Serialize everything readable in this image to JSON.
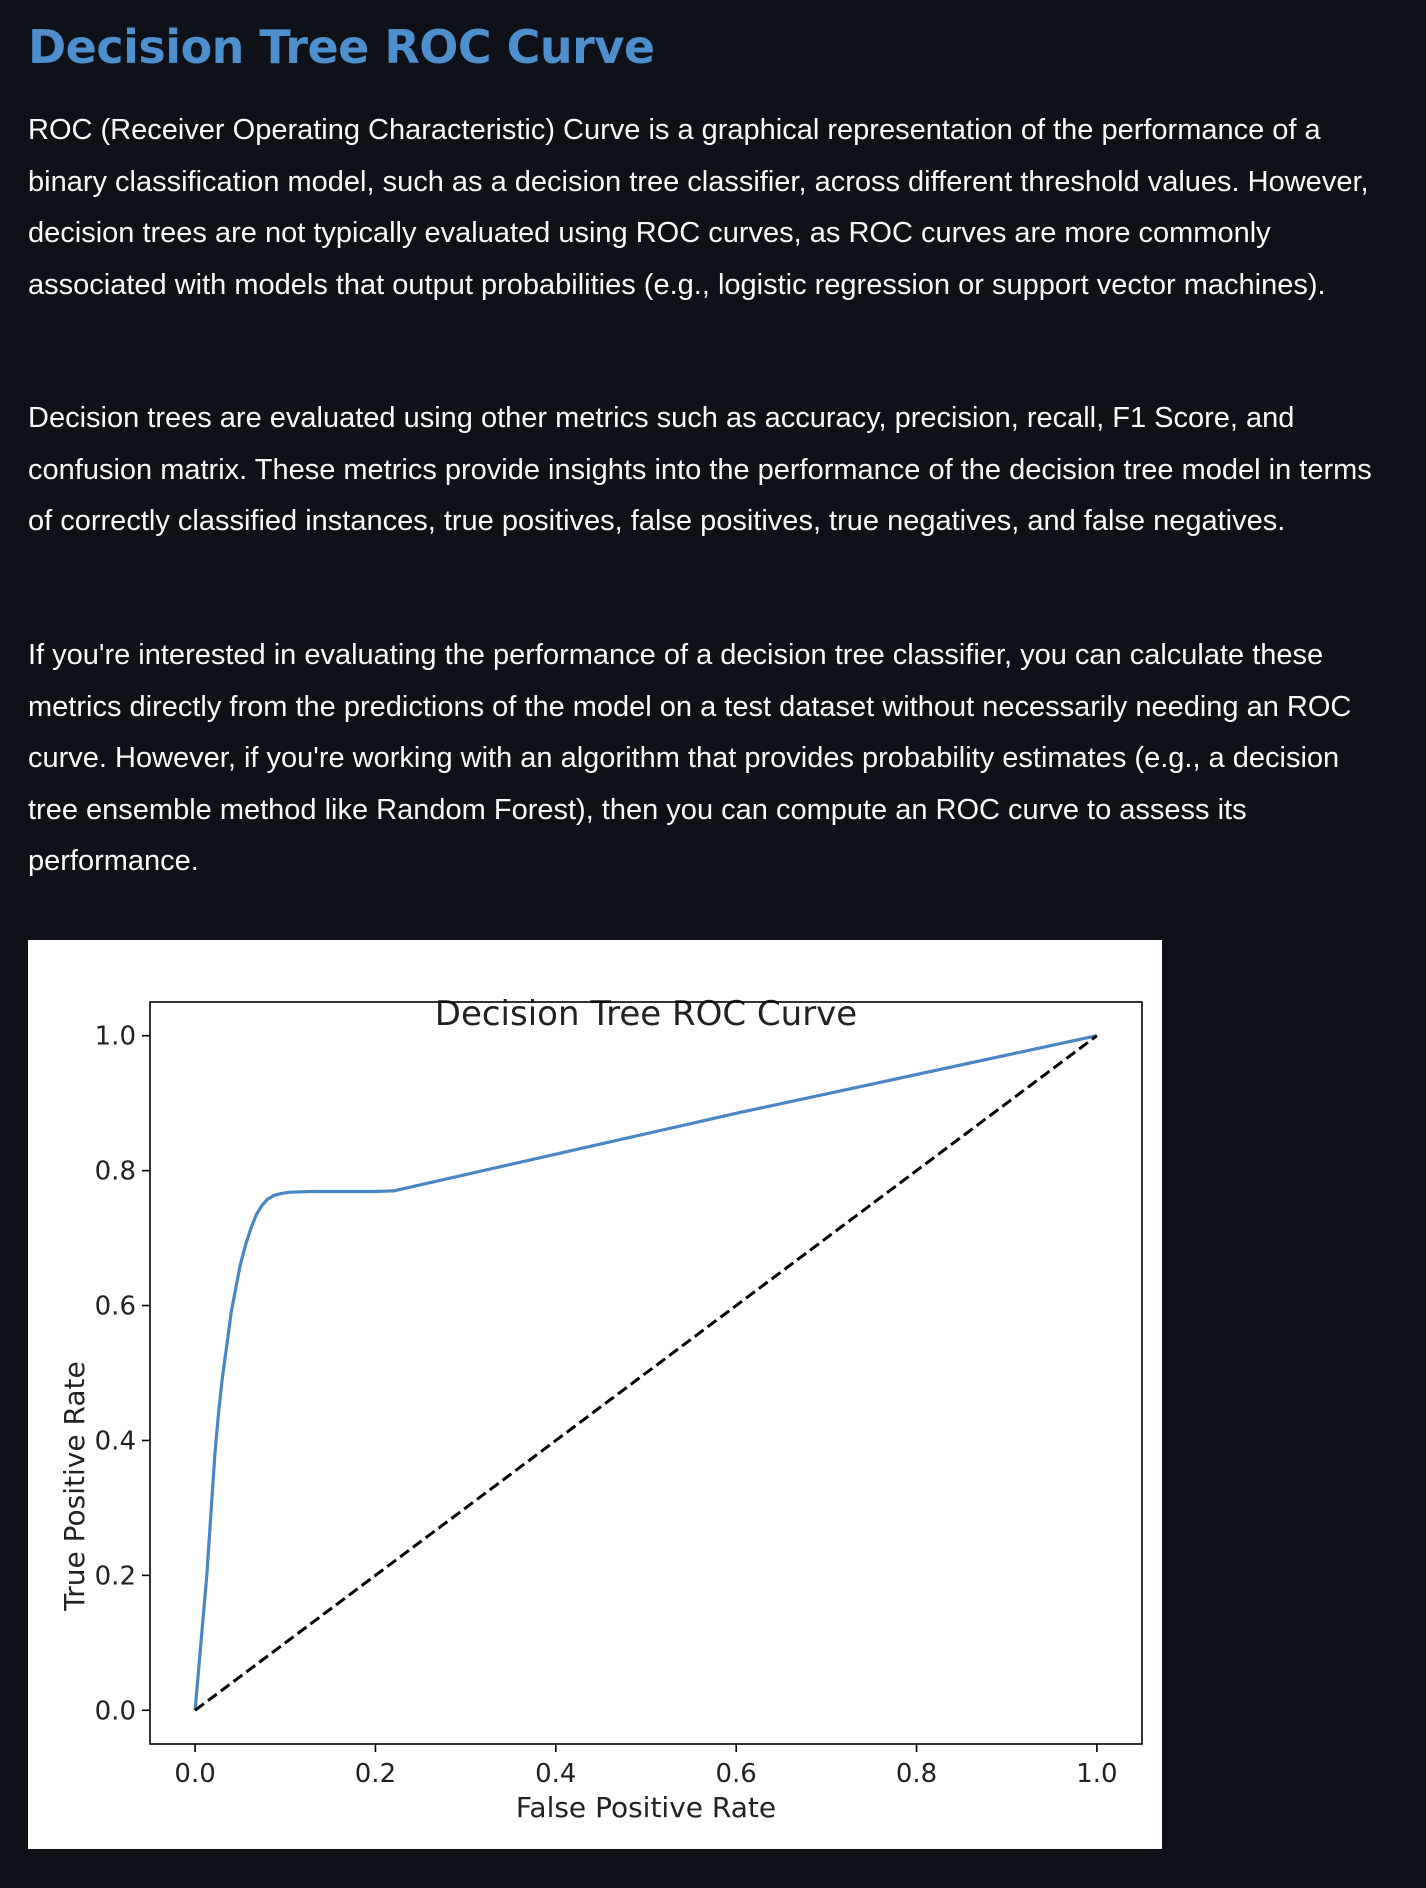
{
  "page": {
    "title": "Decision Tree ROC Curve",
    "paragraphs": [
      "ROC (Receiver Operating Characteristic) Curve is a graphical representation of the performance of a binary classification model, such as a decision tree classifier, across different threshold values. However, decision trees are not typically evaluated using ROC curves, as ROC curves are more commonly associated with models that output probabilities (e.g., logistic regression or support vector machines).",
      "Decision trees are evaluated using other metrics such as accuracy, precision, recall, F1 Score, and confusion matrix. These metrics provide insights into the performance of the decision tree model in terms of correctly classified instances, true positives, false positives, true negatives, and false negatives.",
      "If you're interested in evaluating the performance of a decision tree classifier, you can calculate these metrics directly from the predictions of the model on a test dataset without necessarily needing an ROC curve. However, if you're working with an algorithm that provides probability estimates (e.g., a decision tree ensemble method like Random Forest), then you can compute an ROC curve to assess its performance."
    ]
  },
  "colors": {
    "background": "#0e1117",
    "title": "#4c8fcc",
    "text": "#fafafa",
    "roc_line": "#4a86c4",
    "diagonal": "#000000"
  },
  "chart_data": {
    "type": "line",
    "title": "Decision Tree ROC Curve",
    "xlabel": "False Positive Rate",
    "ylabel": "True Positive Rate",
    "xlim": [
      -0.05,
      1.05
    ],
    "ylim": [
      -0.05,
      1.05
    ],
    "xticks": [
      0.0,
      0.2,
      0.4,
      0.6,
      0.8,
      1.0
    ],
    "yticks": [
      0.0,
      0.2,
      0.4,
      0.6,
      0.8,
      1.0
    ],
    "xtick_labels": [
      "0.0",
      "0.2",
      "0.4",
      "0.6",
      "0.8",
      "1.0"
    ],
    "ytick_labels": [
      "0.0",
      "0.2",
      "0.4",
      "0.6",
      "0.8",
      "1.0"
    ],
    "grid": false,
    "legend": false,
    "series": [
      {
        "style": "solid",
        "color": "#4a86c4",
        "x": [
          0.0,
          0.013,
          0.016,
          0.019,
          0.022,
          0.026,
          0.03,
          0.035,
          0.04,
          0.045,
          0.05,
          0.056,
          0.062,
          0.068,
          0.074,
          0.08,
          0.087,
          0.095,
          0.105,
          0.13,
          0.165,
          0.2,
          0.22,
          0.6,
          1.0
        ],
        "y": [
          0.0,
          0.2,
          0.26,
          0.32,
          0.38,
          0.44,
          0.49,
          0.54,
          0.59,
          0.625,
          0.66,
          0.69,
          0.715,
          0.735,
          0.748,
          0.757,
          0.763,
          0.766,
          0.768,
          0.769,
          0.769,
          0.769,
          0.77,
          0.885,
          1.0
        ]
      },
      {
        "style": "dashed",
        "color": "#000000",
        "x": [
          0.0,
          1.0
        ],
        "y": [
          0.0,
          1.0
        ]
      }
    ]
  }
}
